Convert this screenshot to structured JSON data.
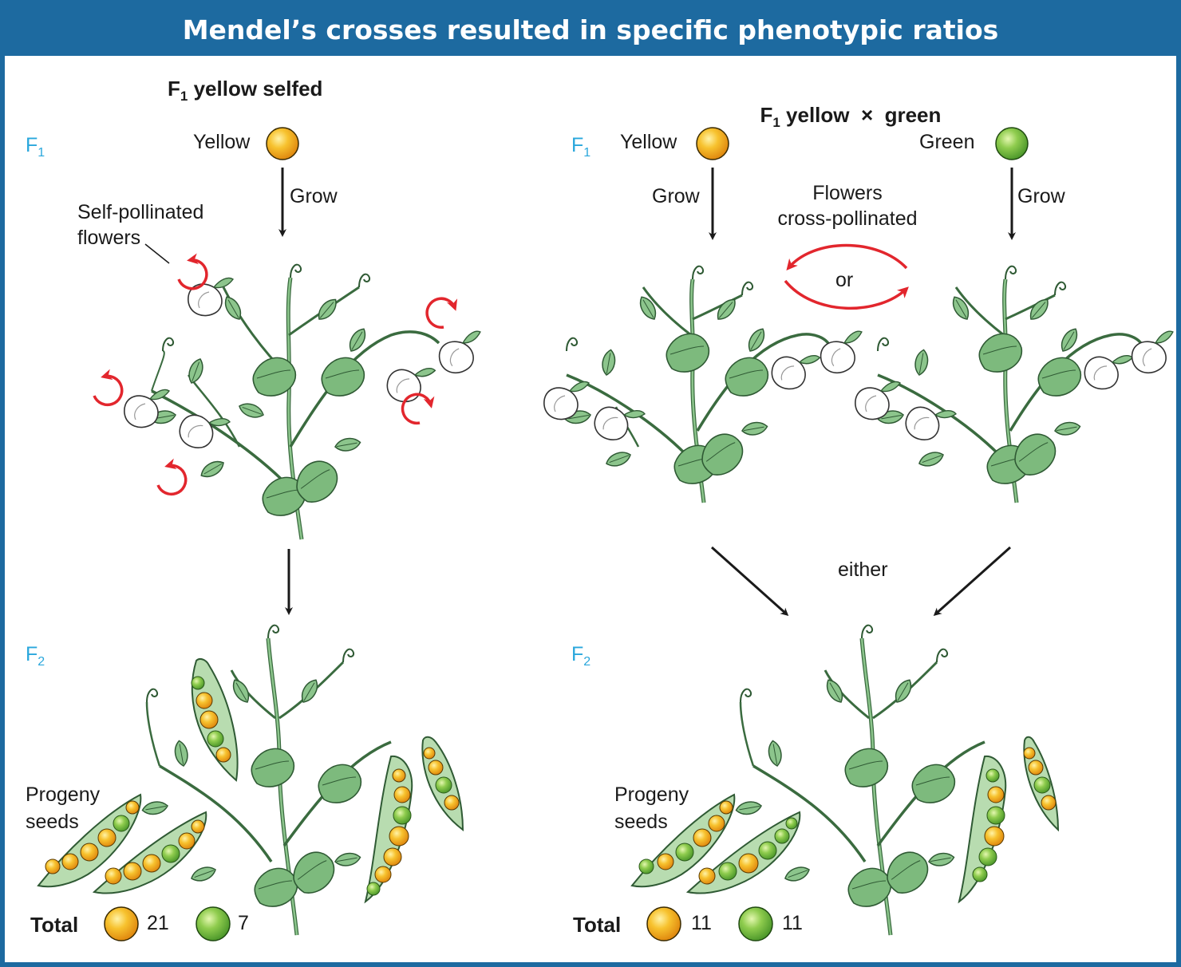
{
  "title": "Mendel’s crosses resulted in specific phenotypic ratios",
  "left_panel": {
    "heading_main": "F",
    "heading_sub": "1",
    "heading_rest": " yellow selfed",
    "gen_f1": "F",
    "gen_f1_sub": "1",
    "seed_label": "Yellow",
    "grow_label": "Grow",
    "self_label_1": "Self-pollinated",
    "self_label_2": "flowers",
    "gen_f2": "F",
    "gen_f2_sub": "2",
    "progeny_1": "Progeny",
    "progeny_2": "seeds",
    "total_label": "Total",
    "total_yellow": "21",
    "total_green": "7"
  },
  "right_panel": {
    "heading_main": "F",
    "heading_sub": "1",
    "heading_rest": " yellow  ×  green",
    "gen_f1": "F",
    "gen_f1_sub": "1",
    "yellow_label": "Yellow",
    "green_label": "Green",
    "grow_left": "Grow",
    "grow_right": "Grow",
    "cross_label_1": "Flowers",
    "cross_label_2": "cross-pollinated",
    "or_label": "or",
    "either_label": "either",
    "gen_f2": "F",
    "gen_f2_sub": "2",
    "progeny_1": "Progeny",
    "progeny_2": "seeds",
    "total_label": "Total",
    "total_yellow": "11",
    "total_green": "11"
  },
  "colors": {
    "frame": "#1d6aa0",
    "generation_label": "#2aa7dc",
    "yellow_seed": "#f5b21a",
    "green_seed": "#76bf3e",
    "plant": "#5d9a62",
    "pollination_arrow": "#e2262d"
  }
}
